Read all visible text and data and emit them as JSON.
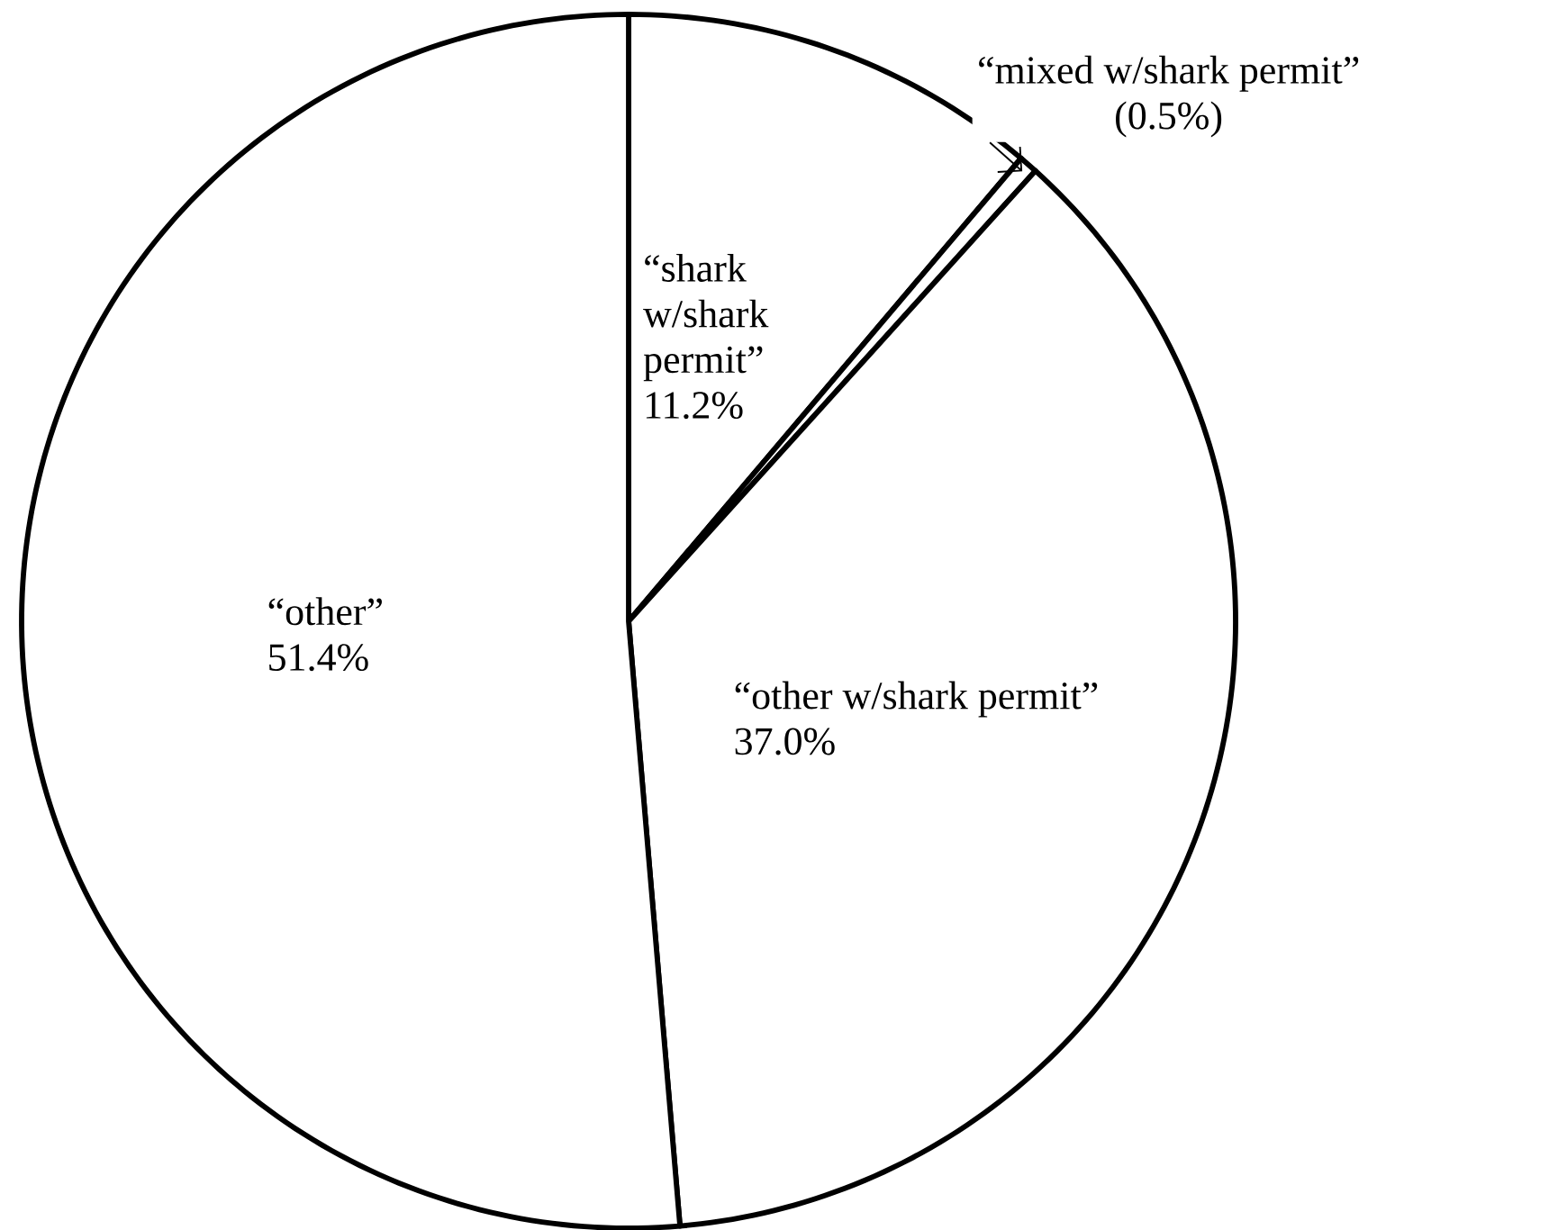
{
  "chart_data": {
    "type": "pie",
    "categories": [
      "“shark w/shark permit”",
      "“mixed w/shark permit”",
      "“other w/shark permit”",
      "“other”"
    ],
    "values": [
      11.2,
      0.5,
      37.0,
      51.4
    ],
    "value_labels": [
      "11.2%",
      "(0.5%)",
      "37.0%",
      "51.4%"
    ],
    "colors": [
      "#ffffff",
      "#ffffff",
      "#ffffff",
      "#ffffff"
    ]
  }
}
